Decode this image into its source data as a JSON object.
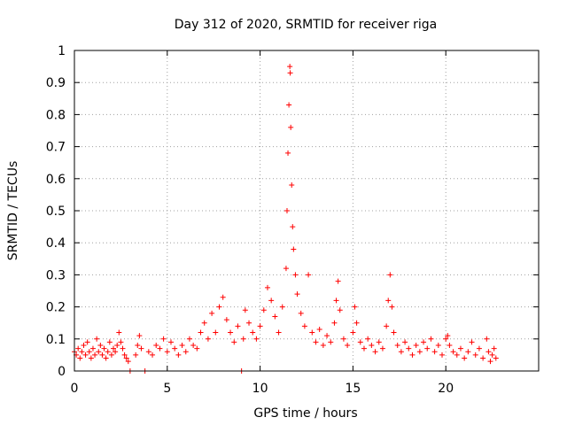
{
  "chart_data": {
    "type": "scatter",
    "title": "Day 312 of 2020, SRMTID for receiver riga",
    "xlabel": "GPS time / hours",
    "ylabel": "SRMTID / TECUs",
    "xlim": [
      0,
      25
    ],
    "ylim": [
      0,
      1
    ],
    "x_ticks": [
      0,
      5,
      10,
      15,
      20
    ],
    "x_tick_labels": [
      "0",
      "5",
      "10",
      "15",
      "20"
    ],
    "y_ticks": [
      0,
      0.1,
      0.2,
      0.3,
      0.4,
      0.5,
      0.6,
      0.7,
      0.8,
      0.9,
      1
    ],
    "y_tick_labels": [
      "0",
      "0.1",
      "0.2",
      "0.3",
      "0.4",
      "0.5",
      "0.6",
      "0.7",
      "0.8",
      "0.9",
      "1"
    ],
    "grid": true,
    "series_color": "#ff0000",
    "series": [
      {
        "name": "SRMTID",
        "marker": "plus",
        "points": [
          [
            0.0,
            0.06
          ],
          [
            0.1,
            0.05
          ],
          [
            0.2,
            0.07
          ],
          [
            0.3,
            0.04
          ],
          [
            0.4,
            0.06
          ],
          [
            0.5,
            0.08
          ],
          [
            0.6,
            0.05
          ],
          [
            0.7,
            0.09
          ],
          [
            0.8,
            0.06
          ],
          [
            0.9,
            0.04
          ],
          [
            1.0,
            0.07
          ],
          [
            1.1,
            0.05
          ],
          [
            1.2,
            0.1
          ],
          [
            1.3,
            0.06
          ],
          [
            1.4,
            0.08
          ],
          [
            1.5,
            0.05
          ],
          [
            1.6,
            0.07
          ],
          [
            1.7,
            0.04
          ],
          [
            1.8,
            0.06
          ],
          [
            1.9,
            0.09
          ],
          [
            2.0,
            0.05
          ],
          [
            2.1,
            0.07
          ],
          [
            2.2,
            0.06
          ],
          [
            2.3,
            0.08
          ],
          [
            2.4,
            0.12
          ],
          [
            2.5,
            0.09
          ],
          [
            2.6,
            0.07
          ],
          [
            2.7,
            0.05
          ],
          [
            2.8,
            0.04
          ],
          [
            2.9,
            0.03
          ],
          [
            3.0,
            0.0
          ],
          [
            3.3,
            0.05
          ],
          [
            3.4,
            0.08
          ],
          [
            3.5,
            0.11
          ],
          [
            3.6,
            0.07
          ],
          [
            3.8,
            0.0
          ],
          [
            4.0,
            0.06
          ],
          [
            4.2,
            0.05
          ],
          [
            4.4,
            0.08
          ],
          [
            4.6,
            0.07
          ],
          [
            4.8,
            0.1
          ],
          [
            5.0,
            0.06
          ],
          [
            5.2,
            0.09
          ],
          [
            5.4,
            0.07
          ],
          [
            5.6,
            0.05
          ],
          [
            5.8,
            0.08
          ],
          [
            6.0,
            0.06
          ],
          [
            6.2,
            0.1
          ],
          [
            6.4,
            0.08
          ],
          [
            6.6,
            0.07
          ],
          [
            6.8,
            0.12
          ],
          [
            7.0,
            0.15
          ],
          [
            7.2,
            0.1
          ],
          [
            7.4,
            0.18
          ],
          [
            7.6,
            0.12
          ],
          [
            7.8,
            0.2
          ],
          [
            8.0,
            0.23
          ],
          [
            8.2,
            0.16
          ],
          [
            8.4,
            0.12
          ],
          [
            8.6,
            0.09
          ],
          [
            8.8,
            0.14
          ],
          [
            9.0,
            0.0
          ],
          [
            9.1,
            0.1
          ],
          [
            9.2,
            0.19
          ],
          [
            9.4,
            0.15
          ],
          [
            9.6,
            0.12
          ],
          [
            9.8,
            0.1
          ],
          [
            10.0,
            0.14
          ],
          [
            10.2,
            0.19
          ],
          [
            10.4,
            0.26
          ],
          [
            10.6,
            0.22
          ],
          [
            10.8,
            0.17
          ],
          [
            11.0,
            0.12
          ],
          [
            11.2,
            0.2
          ],
          [
            11.4,
            0.32
          ],
          [
            11.45,
            0.5
          ],
          [
            11.5,
            0.68
          ],
          [
            11.55,
            0.83
          ],
          [
            11.6,
            0.95
          ],
          [
            11.62,
            0.93
          ],
          [
            11.65,
            0.76
          ],
          [
            11.7,
            0.58
          ],
          [
            11.75,
            0.45
          ],
          [
            11.8,
            0.38
          ],
          [
            11.9,
            0.3
          ],
          [
            12.0,
            0.24
          ],
          [
            12.2,
            0.18
          ],
          [
            12.4,
            0.14
          ],
          [
            12.6,
            0.3
          ],
          [
            12.8,
            0.12
          ],
          [
            13.0,
            0.09
          ],
          [
            13.2,
            0.13
          ],
          [
            13.4,
            0.08
          ],
          [
            13.6,
            0.11
          ],
          [
            13.8,
            0.09
          ],
          [
            14.0,
            0.15
          ],
          [
            14.1,
            0.22
          ],
          [
            14.2,
            0.28
          ],
          [
            14.3,
            0.19
          ],
          [
            14.5,
            0.1
          ],
          [
            14.7,
            0.08
          ],
          [
            15.0,
            0.12
          ],
          [
            15.1,
            0.2
          ],
          [
            15.2,
            0.15
          ],
          [
            15.4,
            0.09
          ],
          [
            15.6,
            0.07
          ],
          [
            15.8,
            0.1
          ],
          [
            16.0,
            0.08
          ],
          [
            16.2,
            0.06
          ],
          [
            16.4,
            0.09
          ],
          [
            16.6,
            0.07
          ],
          [
            16.8,
            0.14
          ],
          [
            16.9,
            0.22
          ],
          [
            17.0,
            0.3
          ],
          [
            17.1,
            0.2
          ],
          [
            17.2,
            0.12
          ],
          [
            17.4,
            0.08
          ],
          [
            17.6,
            0.06
          ],
          [
            17.8,
            0.09
          ],
          [
            18.0,
            0.07
          ],
          [
            18.2,
            0.05
          ],
          [
            18.4,
            0.08
          ],
          [
            18.6,
            0.06
          ],
          [
            18.8,
            0.09
          ],
          [
            19.0,
            0.07
          ],
          [
            19.2,
            0.1
          ],
          [
            19.4,
            0.06
          ],
          [
            19.6,
            0.08
          ],
          [
            19.8,
            0.05
          ],
          [
            20.0,
            0.1
          ],
          [
            20.1,
            0.11
          ],
          [
            20.2,
            0.08
          ],
          [
            20.4,
            0.06
          ],
          [
            20.6,
            0.05
          ],
          [
            20.8,
            0.07
          ],
          [
            21.0,
            0.04
          ],
          [
            21.2,
            0.06
          ],
          [
            21.4,
            0.09
          ],
          [
            21.6,
            0.05
          ],
          [
            21.8,
            0.07
          ],
          [
            22.0,
            0.04
          ],
          [
            22.2,
            0.1
          ],
          [
            22.3,
            0.06
          ],
          [
            22.4,
            0.03
          ],
          [
            22.5,
            0.05
          ],
          [
            22.6,
            0.07
          ],
          [
            22.7,
            0.04
          ]
        ]
      }
    ]
  }
}
